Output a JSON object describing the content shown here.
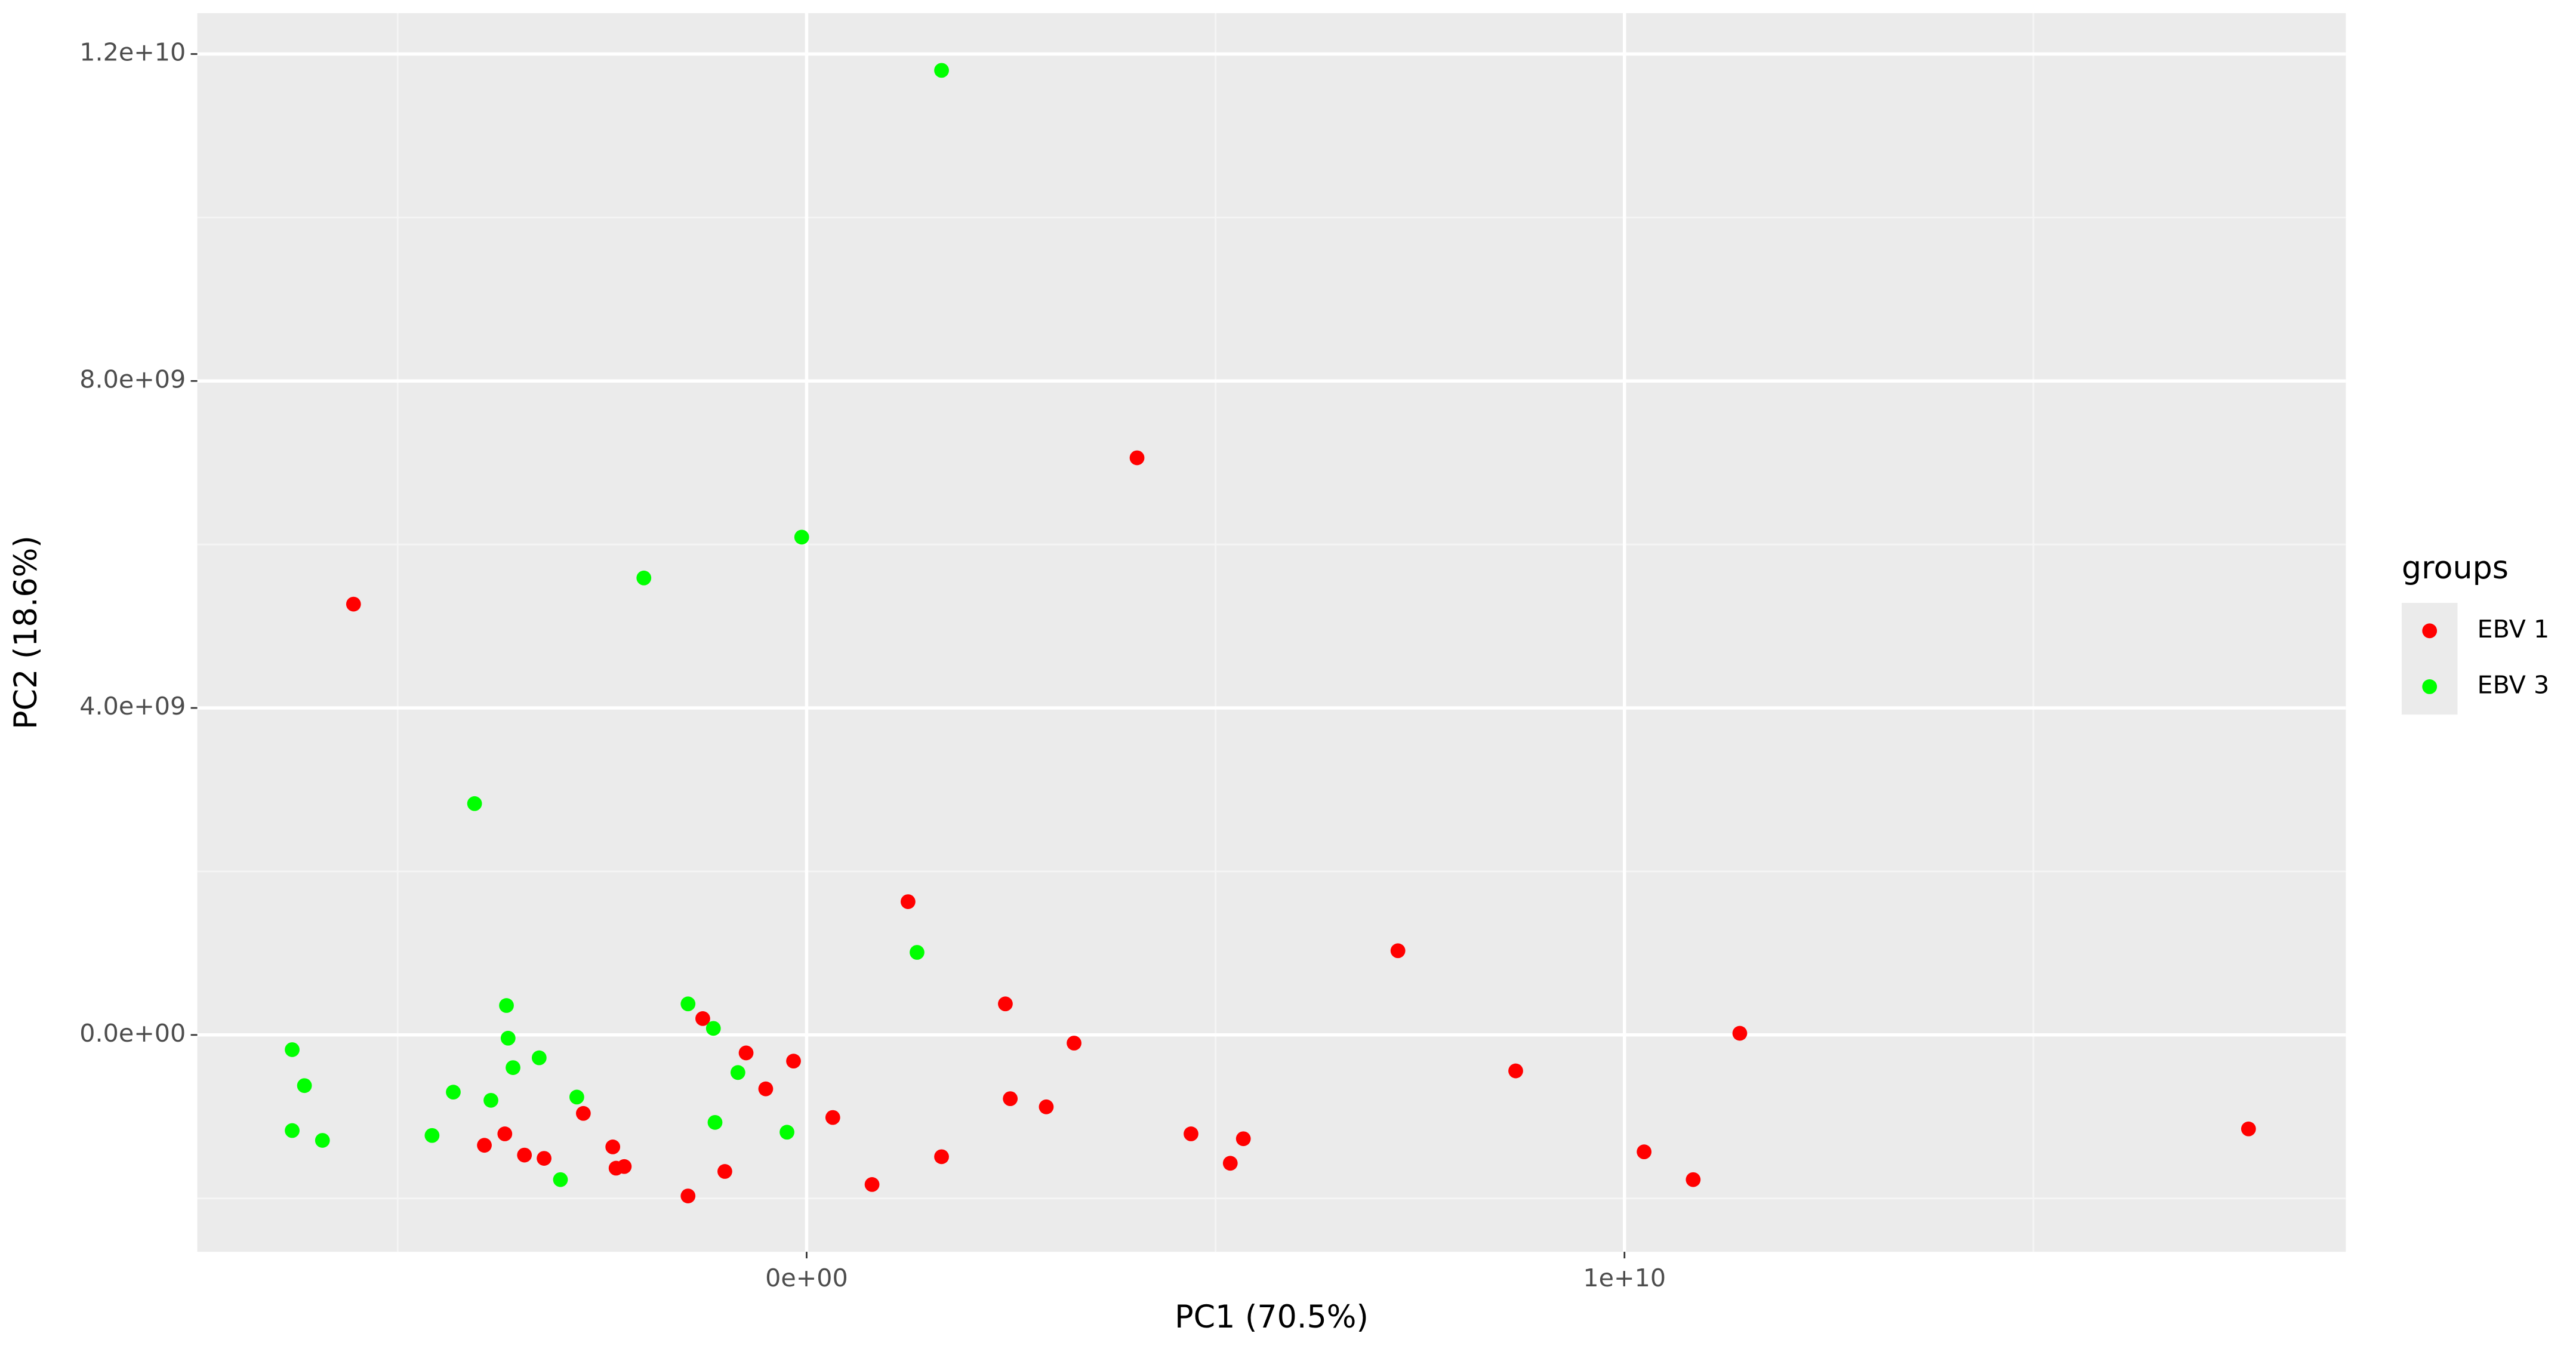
{
  "chart_data": {
    "type": "scatter",
    "x_label": "PC1 (70.5%)",
    "y_label": "PC2 (18.6%)",
    "legend_title": "groups",
    "legend": "right",
    "grid": true,
    "xlim": [
      -7450000000.0,
      18820000000.0
    ],
    "ylim": [
      -2653000000.0,
      12500000000.0
    ],
    "xticks": [
      {
        "value": 0,
        "label": "0e+00"
      },
      {
        "value": 10000000000.0,
        "label": "1e+10"
      }
    ],
    "yticks": [
      {
        "value": 0,
        "label": "0.0e+00"
      },
      {
        "value": 4000000000.0,
        "label": "4.0e+09"
      },
      {
        "value": 8000000000.0,
        "label": "8.0e+09"
      },
      {
        "value": 12000000000.0,
        "label": "1.2e+10"
      }
    ],
    "series": [
      {
        "name": "EBV 1",
        "color": "#ff0000",
        "x": [
          -5540000000.0,
          4040000000.0,
          1240000000.0,
          7230000000.0,
          2430000000.0,
          11410000000.0,
          -1270000000.0,
          -740000000.0,
          -160000000.0,
          3270000000.0,
          -500000000.0,
          8670000000.0,
          2490000000.0,
          2930000000.0,
          -2730000000.0,
          320000000.0,
          -3690000000.0,
          -3940000000.0,
          4700000000.0,
          5340000000.0,
          17630000000.0,
          -2370000000.0,
          -3450000000.0,
          -3210000000.0,
          1650000000.0,
          10240000000.0,
          -2330000000.0,
          -2230000000.0,
          5180000000.0,
          -1000000000.0,
          800000000.0,
          10840000000.0,
          -1450000000.0
        ],
        "values": [
          5270000000.0,
          7060000000.0,
          1630000000.0,
          1030000000.0,
          380000000.0,
          20000000.0,
          200000000.0,
          -220000000.0,
          -320000000.0,
          -100000000.0,
          -660000000.0,
          -440000000.0,
          -780000000.0,
          -880000000.0,
          -960000000.0,
          -1010000000.0,
          -1210000000.0,
          -1350000000.0,
          -1210000000.0,
          -1270000000.0,
          -1150000000.0,
          -1370000000.0,
          -1470000000.0,
          -1510000000.0,
          -1490000000.0,
          -1430000000.0,
          -1630000000.0,
          -1610000000.0,
          -1570000000.0,
          -1670000000.0,
          -1830000000.0,
          -1770000000.0,
          -1970000000.0
        ]
      },
      {
        "name": "EBV 3",
        "color": "#00ff00",
        "x": [
          1650000000.0,
          -60000000.0,
          -1990000000.0,
          -4060000000.0,
          1350000000.0,
          -3670000000.0,
          -1450000000.0,
          -3650000000.0,
          -1140000000.0,
          -6290000000.0,
          -3270000000.0,
          -3590000000.0,
          -840000000.0,
          -6140000000.0,
          -4320000000.0,
          -3860000000.0,
          -2810000000.0,
          -1120000000.0,
          -6290000000.0,
          -240000000.0,
          -4580000000.0,
          -5920000000.0,
          -3010000000.0
        ],
        "values": [
          11800000000.0,
          6090000000.0,
          5590000000.0,
          2830000000.0,
          1010000000.0,
          360000000.0,
          380000000.0,
          -40000000.0,
          80000000.0,
          -180000000.0,
          -280000000.0,
          -400000000.0,
          -460000000.0,
          -620000000.0,
          -700000000.0,
          -800000000.0,
          -760000000.0,
          -1070000000.0,
          -1170000000.0,
          -1190000000.0,
          -1230000000.0,
          -1290000000.0,
          -1770000000.0
        ]
      }
    ]
  }
}
